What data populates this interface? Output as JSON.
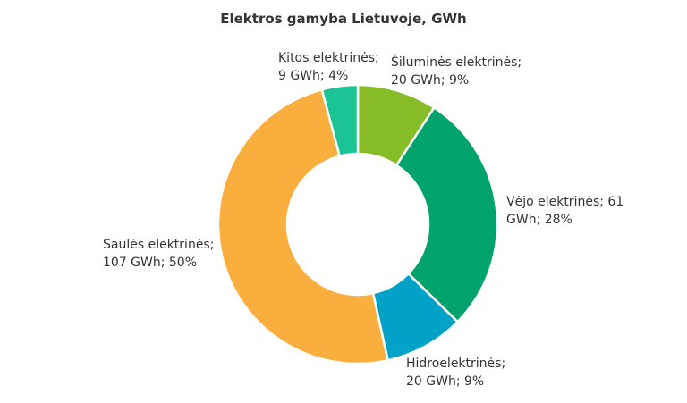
{
  "chart_data": {
    "type": "pie",
    "title": "Elektros gamyba Lietuvoje, GWh",
    "slices": [
      {
        "name": "Šiluminės elektrinės",
        "value": 20,
        "percent": 9,
        "color": "#86bc25",
        "line1": "Šiluminės elektrinės;",
        "line2": "20 GWh; 9%"
      },
      {
        "name": "Vėjo elektrinės",
        "value": 61,
        "percent": 28,
        "color": "#00a36c",
        "line1": "Vėjo elektrinės; 61",
        "line2": "GWh; 28%"
      },
      {
        "name": "Hidroelektrinės",
        "value": 20,
        "percent": 9,
        "color": "#00a3c7",
        "line1": "Hidroelektrinės;",
        "line2": "20 GWh; 9%"
      },
      {
        "name": "Saulės elektrinės",
        "value": 107,
        "percent": 50,
        "color": "#f9ae3d",
        "line1": "Saulės elektrinės;",
        "line2": "107 GWh; 50%"
      },
      {
        "name": "Kitos elektrinės",
        "value": 9,
        "percent": 4,
        "color": "#1cc494",
        "line1": "Kitos elektrinės;",
        "line2": "9 GWh; 4%"
      }
    ]
  }
}
